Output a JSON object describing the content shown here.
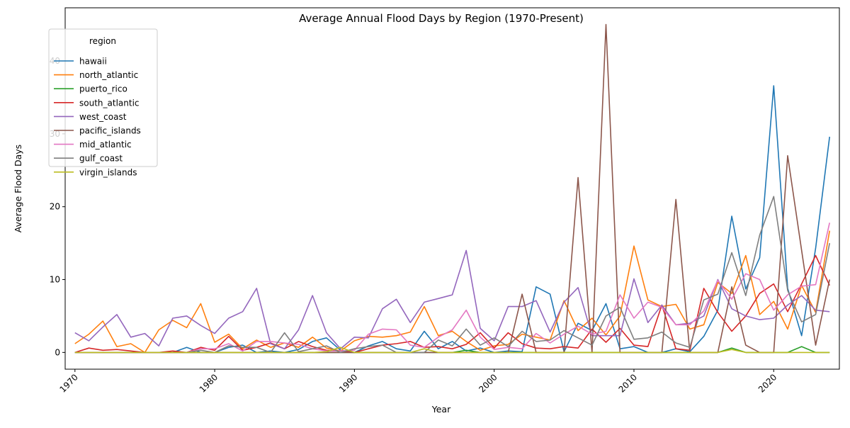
{
  "chart_data": {
    "type": "line",
    "title": "Average Annual Flood Days by Region (1970-Present)",
    "xlabel": "Year",
    "ylabel": "Average Flood Days",
    "xlim": [
      1969.3,
      2024.7
    ],
    "ylim": [
      -2.3,
      47.3
    ],
    "xticks": [
      1970,
      1980,
      1990,
      2000,
      2010,
      2020
    ],
    "yticks": [
      0,
      10,
      20,
      30,
      40
    ],
    "grid": false,
    "legend": {
      "title": "region",
      "placement": "top-left"
    },
    "x_start": 1970,
    "series": [
      {
        "name": "hawaii",
        "color": "#1f77b4",
        "values": [
          0,
          0,
          0,
          0,
          0,
          0,
          0,
          0,
          0.7,
          0,
          0,
          0.7,
          1,
          0,
          0.2,
          0,
          0.4,
          1.5,
          2,
          0.3,
          0,
          0.9,
          1.5,
          0.5,
          0.2,
          2.9,
          0.5,
          1.5,
          0.2,
          0.6,
          0,
          0.2,
          0.1,
          9,
          8,
          0.1,
          4,
          3,
          6.7,
          0.5,
          0.8,
          0,
          0,
          0.5,
          0.1,
          2.2,
          5.8,
          18.7,
          8.7,
          13,
          36.6,
          8.8,
          2.3,
          14.3,
          29.6
        ]
      },
      {
        "name": "north_atlantic",
        "color": "#ff7f0e",
        "values": [
          1.2,
          2.5,
          4.3,
          0.8,
          1.2,
          0,
          3.1,
          4.4,
          3.4,
          6.7,
          1.4,
          2.5,
          0.5,
          1.7,
          0.7,
          1.3,
          0.7,
          2.1,
          0.6,
          0.2,
          1.6,
          2.2,
          2.1,
          2.3,
          2.8,
          6.3,
          2.3,
          2.9,
          1.5,
          0.3,
          0.9,
          1.1,
          2.5,
          2.1,
          1.7,
          7.1,
          3,
          4.7,
          2.4,
          5,
          14.6,
          7.2,
          6.3,
          6.6,
          3.2,
          3.8,
          9.6,
          8.1,
          13.3,
          5.2,
          7,
          3.2,
          9.2,
          5.5,
          16.7
        ]
      },
      {
        "name": "puerto_rico",
        "color": "#2ca02c",
        "values": [
          0,
          0,
          0,
          0,
          0,
          0,
          0,
          0,
          0,
          0,
          0,
          0,
          0,
          0,
          0,
          0,
          0,
          0,
          0,
          0,
          0,
          0,
          0,
          0,
          0,
          0,
          0,
          0,
          0.3,
          0,
          0,
          0,
          0,
          0,
          0,
          0,
          0,
          0,
          0,
          0,
          0,
          0,
          0,
          0,
          0,
          0,
          0,
          0.6,
          0,
          0,
          0,
          0,
          0.8,
          0,
          0
        ]
      },
      {
        "name": "south_atlantic",
        "color": "#d62728",
        "values": [
          0,
          0.6,
          0.3,
          0.4,
          0.2,
          0,
          0,
          0.2,
          0,
          0.7,
          0.3,
          2.2,
          0.3,
          0.7,
          1.3,
          0.5,
          1.5,
          0.8,
          0.3,
          0.2,
          0,
          0.5,
          1,
          1.2,
          1.5,
          0.7,
          0.8,
          0.5,
          1.1,
          2.7,
          0.6,
          2.7,
          1.2,
          0.6,
          0.5,
          0.8,
          0.6,
          3.2,
          1.4,
          3.3,
          1,
          0.8,
          6.5,
          0.5,
          0.3,
          8.8,
          5.5,
          2.9,
          5,
          8.1,
          9.4,
          5.6,
          9.4,
          13.3,
          9.2
        ]
      },
      {
        "name": "west_coast",
        "color": "#9467bd",
        "values": [
          2.7,
          1.6,
          3.5,
          5.2,
          2.1,
          2.6,
          0.9,
          4.7,
          5,
          3.7,
          2.6,
          4.7,
          5.6,
          8.8,
          1.2,
          0.5,
          3.1,
          7.8,
          2.7,
          0.5,
          2.1,
          2,
          6,
          7.3,
          4.1,
          6.9,
          7.4,
          7.9,
          14,
          3.3,
          1.6,
          6.3,
          6.3,
          7.1,
          2.8,
          6.9,
          8.9,
          2.3,
          2.3,
          2.3,
          10.1,
          4.1,
          6.5,
          3.8,
          4,
          5,
          10,
          6,
          5,
          4.5,
          4.7,
          6.5,
          7.8,
          5.8,
          5.6
        ]
      },
      {
        "name": "pacific_islands",
        "color": "#8c564b",
        "values": [
          0,
          0,
          0,
          0,
          0,
          0,
          0,
          0,
          0,
          0,
          0,
          0,
          0,
          0,
          0,
          0,
          0,
          0,
          0,
          0,
          0,
          0,
          0,
          0,
          0,
          0,
          0,
          0,
          0,
          0,
          0,
          0,
          8,
          0,
          0,
          0,
          24,
          0,
          45,
          0,
          0,
          0,
          0,
          21,
          0,
          0,
          0,
          9,
          1,
          0,
          0,
          27,
          14,
          1,
          10
        ]
      },
      {
        "name": "mid_atlantic",
        "color": "#e377c2",
        "values": [
          0,
          0,
          0,
          0,
          0,
          0,
          0,
          0,
          0,
          0.5,
          0.5,
          1.2,
          0.2,
          1.5,
          1.5,
          1.3,
          1.1,
          0.5,
          0.2,
          0.2,
          0.3,
          2.5,
          3.2,
          3.1,
          1,
          0.7,
          2.1,
          3.1,
          5.8,
          2.1,
          0.4,
          0.7,
          0.5,
          2.6,
          1.3,
          2.5,
          3.6,
          2.5,
          2.9,
          7.9,
          4.7,
          6.9,
          6.2,
          3.8,
          3.8,
          5.7,
          9.9,
          7.3,
          10.8,
          10,
          5.8,
          7.9,
          9.1,
          9.3,
          17.8
        ]
      },
      {
        "name": "gulf_coast",
        "color": "#7f7f7f",
        "values": [
          0,
          0,
          0,
          0,
          0,
          0,
          0,
          0,
          0,
          0.3,
          0,
          0.9,
          0.7,
          0.7,
          0,
          2.7,
          0.1,
          0.5,
          0.9,
          0,
          0.5,
          0.8,
          1,
          0,
          0,
          0,
          1.7,
          0.9,
          3.2,
          1,
          2,
          0.8,
          2.9,
          1.5,
          1.7,
          3,
          2,
          1,
          5,
          6.2,
          1.8,
          2,
          2.8,
          1.3,
          0.7,
          7.2,
          8,
          13.7,
          7.8,
          16.1,
          21.4,
          8.5,
          4.2,
          5.2,
          15
        ]
      },
      {
        "name": "virgin_islands",
        "color": "#bcbd22",
        "values": [
          0,
          0,
          0,
          0,
          0,
          0,
          0,
          0,
          0,
          0,
          0,
          0,
          0,
          0,
          0,
          0,
          0,
          0,
          0.1,
          0.7,
          0,
          0,
          0,
          0,
          0,
          0.5,
          0,
          0,
          0,
          0,
          0,
          0,
          0,
          0,
          0,
          0,
          0,
          0,
          0,
          0,
          0,
          0,
          0,
          0,
          0,
          0,
          0,
          0.4,
          0,
          0,
          0,
          0,
          0,
          0,
          0
        ]
      }
    ]
  }
}
